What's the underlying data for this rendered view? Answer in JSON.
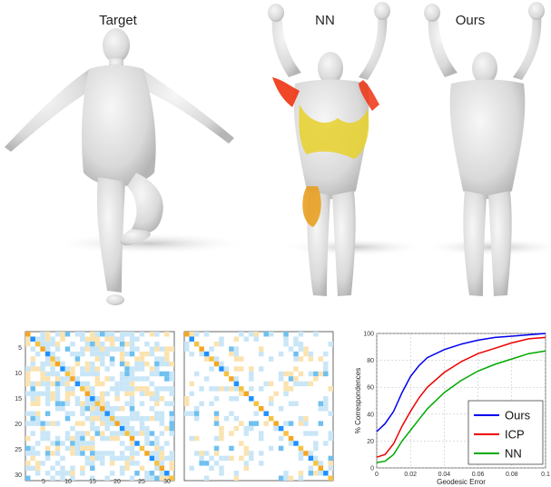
{
  "panels": {
    "target_label": "Target",
    "nn_label": "NN",
    "ours_label": "Ours"
  },
  "matrix_ticks": {
    "y": [
      "5",
      "10",
      "15",
      "20",
      "25",
      "30"
    ],
    "x": [
      "5",
      "10",
      "15",
      "20",
      "25",
      "30"
    ]
  },
  "chart_data": {
    "type": "line",
    "xlabel": "Geodesic Error",
    "ylabel": "% Correspondences",
    "xlim": [
      0,
      0.1
    ],
    "ylim": [
      0,
      100
    ],
    "xticks": [
      "0",
      "0.02",
      "0.04",
      "0.06",
      "0.08",
      "0.1"
    ],
    "yticks": [
      "0",
      "20",
      "40",
      "60",
      "80",
      "100"
    ],
    "grid": true,
    "legend_position": "bottom-right",
    "series": [
      {
        "name": "Ours",
        "color": "#0000ee",
        "x": [
          0,
          0.005,
          0.01,
          0.015,
          0.02,
          0.025,
          0.03,
          0.04,
          0.05,
          0.06,
          0.07,
          0.08,
          0.09,
          0.1
        ],
        "y": [
          27,
          33,
          42,
          56,
          68,
          76,
          82,
          88,
          92,
          95,
          97,
          98,
          99,
          100
        ]
      },
      {
        "name": "ICP",
        "color": "#ee0000",
        "x": [
          0,
          0.005,
          0.01,
          0.015,
          0.02,
          0.025,
          0.03,
          0.04,
          0.05,
          0.06,
          0.07,
          0.08,
          0.09,
          0.1
        ],
        "y": [
          8,
          10,
          18,
          31,
          42,
          52,
          60,
          71,
          79,
          85,
          89,
          93,
          96,
          97
        ]
      },
      {
        "name": "NN",
        "color": "#00aa00",
        "x": [
          0,
          0.005,
          0.01,
          0.015,
          0.02,
          0.025,
          0.03,
          0.04,
          0.05,
          0.06,
          0.07,
          0.08,
          0.09,
          0.1
        ],
        "y": [
          4,
          5,
          10,
          20,
          28,
          36,
          44,
          56,
          65,
          72,
          77,
          81,
          85,
          87
        ]
      }
    ]
  }
}
